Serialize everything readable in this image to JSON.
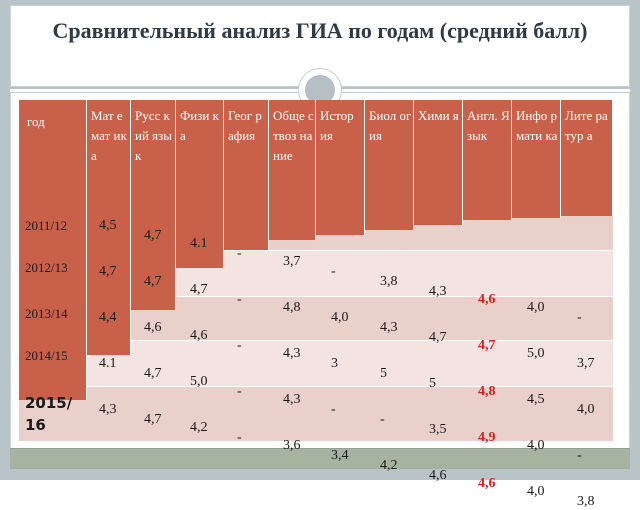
{
  "title": "Сравнительный анализ ГИА по годам (средний балл)",
  "header": {
    "year": "год",
    "subjects": [
      "Мат емат ика",
      "Русс кий язык",
      "Физи ка",
      "Геог рафия",
      "Обще ствоз нание",
      "Истор ия",
      "Биол огия",
      "Хими я",
      "Англ. Язык",
      "Инфо рмати ка",
      "Лите ратур а"
    ]
  },
  "rows": [
    {
      "year": "2011/12",
      "values": [
        "4,5",
        "4,7",
        "4.1",
        "-",
        "3,7",
        "-",
        "3,8",
        "4,3",
        "4,6",
        "4,0",
        "-"
      ]
    },
    {
      "year": "2012/13",
      "values": [
        "4,7",
        "4,7",
        "4,7",
        "-",
        "4,8",
        "4,0",
        "4,3",
        "4,7",
        "4,7",
        "5,0",
        "3,7"
      ]
    },
    {
      "year": "2013/14",
      "values": [
        "4,4",
        "4,6",
        "4,6",
        "-",
        "4,3",
        "3",
        "5",
        "5",
        "4,8",
        "4,5",
        "4,0"
      ]
    },
    {
      "year": "2014/15",
      "values": [
        "4.1",
        "4,7",
        "5,0",
        "-",
        "4,3",
        "-",
        "-",
        "3,5",
        "4,9",
        "4,0",
        "-"
      ]
    },
    {
      "year": "2015/ 16",
      "values": [
        "4,3",
        "4,7",
        "4,2",
        "-",
        "3,6",
        "3,4",
        "4,2",
        "4,6",
        "4,6",
        "4,0",
        "3,8"
      ]
    }
  ],
  "colors": {
    "header_fill": "#c9604a",
    "highlight": "#e0201c",
    "band_light": "#f4e4e1",
    "band_dark": "#ead0cb"
  }
}
